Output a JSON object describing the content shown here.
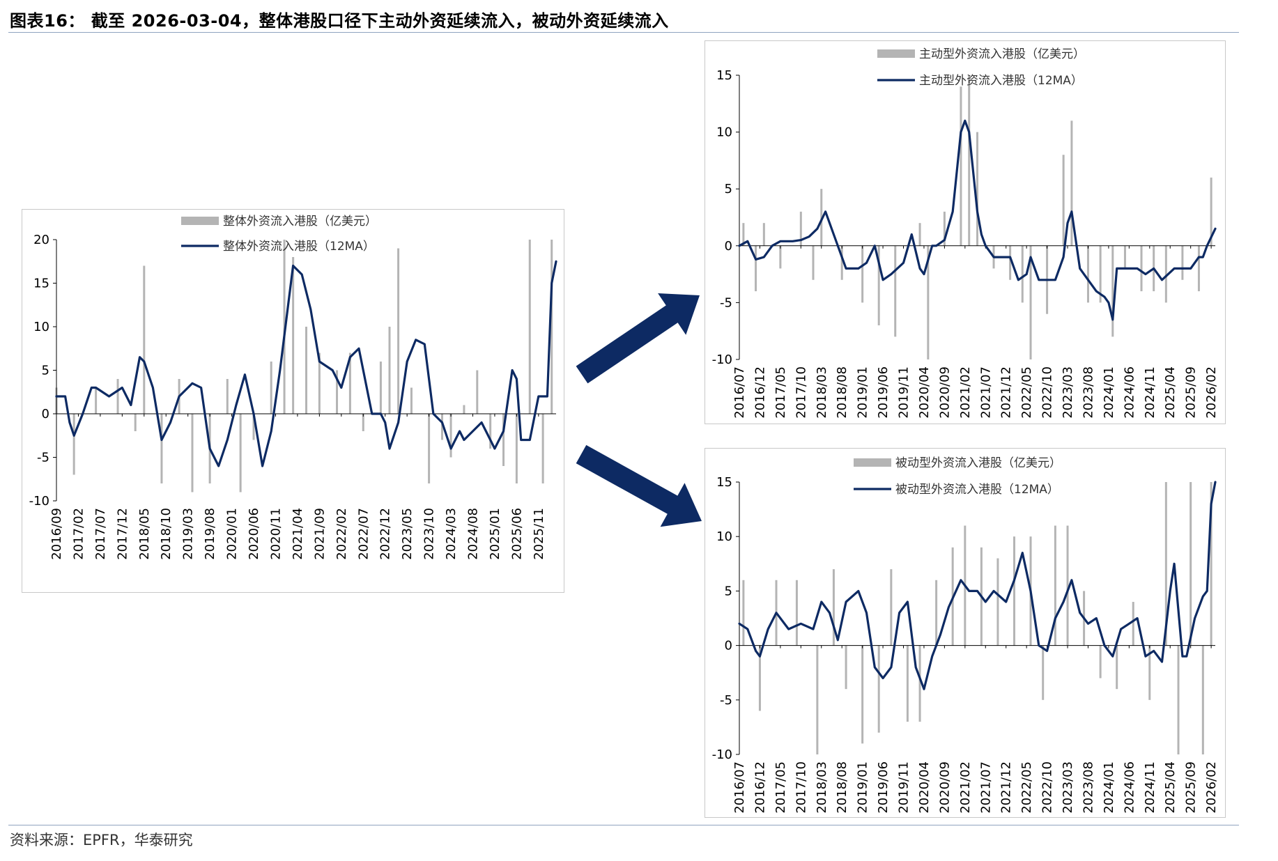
{
  "page": {
    "title": "图表16：  截至 2026-03-04，整体港股口径下主动外资延续流入，被动外资延续流入",
    "source": "资料来源：EPFR，华泰研究",
    "colors": {
      "bar": "#b4b4b4",
      "line": "#0d2a63",
      "arrow": "#0d2a63",
      "axis": "#000000"
    }
  },
  "chart_data": [
    {
      "id": "overall",
      "type": "bar",
      "title": "",
      "xlabel": "",
      "ylabel": "",
      "ylim": [
        -10,
        20
      ],
      "yticks": [
        -10,
        -5,
        0,
        5,
        10,
        15,
        20
      ],
      "x_start": "2016-09",
      "x_end": "2026-03",
      "x_tick_labels": [
        "2016/09",
        "2017/02",
        "2017/07",
        "2017/12",
        "2018/05",
        "2018/10",
        "2019/03",
        "2019/08",
        "2020/01",
        "2020/06",
        "2020/11",
        "2021/04",
        "2021/09",
        "2022/02",
        "2022/07",
        "2022/12",
        "2023/05",
        "2023/10",
        "2024/03",
        "2024/08",
        "2025/01",
        "2025/06",
        "2025/11"
      ],
      "legend_position": "top-center",
      "series": [
        {
          "name": "整体外资流入港股（亿美元）",
          "kind": "bar",
          "x": [
            "2016-09",
            "2017-01",
            "2017-06",
            "2017-11",
            "2018-03",
            "2018-05",
            "2018-09",
            "2019-01",
            "2019-04",
            "2019-08",
            "2019-12",
            "2020-03",
            "2020-06",
            "2020-10",
            "2021-01",
            "2021-03",
            "2021-06",
            "2021-09",
            "2022-01",
            "2022-04",
            "2022-07",
            "2022-11",
            "2023-01",
            "2023-03",
            "2023-06",
            "2023-10",
            "2024-01",
            "2024-03",
            "2024-06",
            "2024-09",
            "2024-12",
            "2025-03",
            "2025-06",
            "2025-09",
            "2025-12",
            "2026-02"
          ],
          "values": [
            3,
            -7,
            3,
            4,
            -2,
            17,
            -8,
            4,
            -9,
            -8,
            4,
            -9,
            -3,
            6,
            20,
            18,
            10,
            7,
            5,
            7,
            -2,
            6,
            10,
            19,
            3,
            -8,
            -3,
            -5,
            1,
            5,
            -4,
            -6,
            -8,
            20,
            -8,
            20
          ]
        },
        {
          "name": "整体外资流入港股（12MA）",
          "kind": "line",
          "x": [
            "2016-09",
            "2016-11",
            "2016-12",
            "2017-01",
            "2017-03",
            "2017-05",
            "2017-06",
            "2017-09",
            "2017-12",
            "2018-02",
            "2018-04",
            "2018-05",
            "2018-07",
            "2018-09",
            "2018-11",
            "2019-01",
            "2019-04",
            "2019-06",
            "2019-08",
            "2019-10",
            "2019-12",
            "2020-02",
            "2020-04",
            "2020-06",
            "2020-08",
            "2020-10",
            "2020-12",
            "2021-02",
            "2021-03",
            "2021-05",
            "2021-07",
            "2021-09",
            "2021-12",
            "2022-02",
            "2022-04",
            "2022-06",
            "2022-09",
            "2022-11",
            "2022-12",
            "2023-01",
            "2023-03",
            "2023-05",
            "2023-07",
            "2023-09",
            "2023-11",
            "2024-01",
            "2024-03",
            "2024-05",
            "2024-06",
            "2024-08",
            "2024-10",
            "2024-12",
            "2025-01",
            "2025-03",
            "2025-05",
            "2025-06",
            "2025-07",
            "2025-09",
            "2025-11",
            "2026-01",
            "2026-02",
            "2026-03"
          ],
          "values": [
            2,
            2,
            -1,
            -2.5,
            0,
            3,
            3,
            2,
            3,
            1,
            6.5,
            6,
            3,
            -3,
            -1,
            2,
            3.5,
            3,
            -4,
            -6,
            -3,
            1,
            4.5,
            0,
            -6,
            -2,
            5,
            13,
            17,
            16,
            12,
            6,
            5,
            3,
            6.5,
            7.5,
            0,
            0,
            -1,
            -4,
            -1,
            6,
            8.5,
            8,
            0,
            -1,
            -4,
            -2,
            -3,
            -2,
            -1,
            -3,
            -4,
            -2,
            5,
            4,
            -3,
            -3,
            2,
            2,
            15,
            17.5
          ]
        }
      ]
    },
    {
      "id": "active",
      "type": "bar",
      "title": "",
      "xlabel": "",
      "ylabel": "",
      "ylim": [
        -10,
        15
      ],
      "yticks": [
        -10,
        -5,
        0,
        5,
        10,
        15
      ],
      "x_start": "2016-07",
      "x_end": "2026-03",
      "x_tick_labels": [
        "2016/07",
        "2016/12",
        "2017/05",
        "2017/10",
        "2018/03",
        "2018/08",
        "2019/01",
        "2019/06",
        "2019/11",
        "2020/04",
        "2020/09",
        "2021/02",
        "2021/07",
        "2021/12",
        "2022/05",
        "2022/10",
        "2023/03",
        "2023/08",
        "2024/01",
        "2024/06",
        "2024/11",
        "2025/04",
        "2025/09",
        "2026/02"
      ],
      "legend_position": "top-center",
      "series": [
        {
          "name": "主动型外资流入港股（亿美元）",
          "kind": "bar",
          "x": [
            "2016-08",
            "2016-11",
            "2017-01",
            "2017-05",
            "2017-10",
            "2018-01",
            "2018-03",
            "2018-08",
            "2019-01",
            "2019-05",
            "2019-09",
            "2020-03",
            "2020-05",
            "2020-09",
            "2021-01",
            "2021-03",
            "2021-05",
            "2021-09",
            "2022-01",
            "2022-04",
            "2022-06",
            "2022-10",
            "2023-02",
            "2023-04",
            "2023-08",
            "2023-11",
            "2024-02",
            "2024-05",
            "2024-09",
            "2024-12",
            "2025-03",
            "2025-07",
            "2025-11",
            "2026-02"
          ],
          "values": [
            2,
            -4,
            2,
            -2,
            3,
            -3,
            5,
            -3,
            -5,
            -7,
            -8,
            2,
            -10,
            3,
            14,
            15,
            10,
            -2,
            -3,
            -5,
            -10,
            -6,
            8,
            11,
            -5,
            -5,
            -8,
            -2,
            -4,
            -4,
            -5,
            -3,
            -4,
            6
          ]
        },
        {
          "name": "主动型外资流入港股（12MA）",
          "kind": "line",
          "x": [
            "2016-07",
            "2016-09",
            "2016-11",
            "2017-01",
            "2017-03",
            "2017-05",
            "2017-08",
            "2017-10",
            "2017-12",
            "2018-02",
            "2018-04",
            "2018-06",
            "2018-09",
            "2018-12",
            "2019-02",
            "2019-04",
            "2019-06",
            "2019-08",
            "2019-11",
            "2020-01",
            "2020-03",
            "2020-04",
            "2020-06",
            "2020-07",
            "2020-09",
            "2020-11",
            "2021-01",
            "2021-02",
            "2021-03",
            "2021-05",
            "2021-06",
            "2021-07",
            "2021-09",
            "2021-11",
            "2022-01",
            "2022-03",
            "2022-05",
            "2022-06",
            "2022-08",
            "2022-10",
            "2022-12",
            "2023-02",
            "2023-03",
            "2023-04",
            "2023-06",
            "2023-08",
            "2023-10",
            "2023-12",
            "2024-01",
            "2024-02",
            "2024-03",
            "2024-05",
            "2024-08",
            "2024-10",
            "2024-12",
            "2025-02",
            "2025-05",
            "2025-07",
            "2025-09",
            "2025-11",
            "2025-12",
            "2026-01",
            "2026-03"
          ],
          "values": [
            0,
            0.4,
            -1.2,
            -1,
            0,
            0.4,
            0.4,
            0.5,
            0.8,
            1.5,
            3,
            1,
            -2,
            -2,
            -1.5,
            0,
            -3,
            -2.5,
            -1.5,
            1,
            -2,
            -2.5,
            0,
            0,
            0.5,
            3,
            10,
            11,
            10,
            3,
            1,
            0,
            -1,
            -1,
            -1,
            -3,
            -2.5,
            -1,
            -3,
            -3,
            -3,
            -1,
            2,
            3,
            -2,
            -3,
            -4,
            -4.5,
            -5,
            -6.5,
            -2,
            -2,
            -2,
            -2.5,
            -2,
            -3,
            -2,
            -2,
            -2,
            -1,
            -1,
            0,
            1.5
          ]
        }
      ]
    },
    {
      "id": "passive",
      "type": "bar",
      "title": "",
      "xlabel": "",
      "ylabel": "",
      "ylim": [
        -10,
        15
      ],
      "yticks": [
        -10,
        -5,
        0,
        5,
        10,
        15
      ],
      "x_start": "2016-07",
      "x_end": "2026-03",
      "x_tick_labels": [
        "2016/07",
        "2016/12",
        "2017/05",
        "2017/10",
        "2018/03",
        "2018/08",
        "2019/01",
        "2019/06",
        "2019/11",
        "2020/04",
        "2020/09",
        "2021/02",
        "2021/07",
        "2021/12",
        "2022/05",
        "2022/10",
        "2023/03",
        "2023/08",
        "2024/01",
        "2024/06",
        "2024/11",
        "2025/04",
        "2025/09",
        "2026/02"
      ],
      "legend_position": "top-center",
      "series": [
        {
          "name": "被动型外资流入港股（亿美元）",
          "kind": "bar",
          "x": [
            "2016-08",
            "2016-12",
            "2017-04",
            "2017-09",
            "2018-02",
            "2018-06",
            "2018-09",
            "2019-01",
            "2019-05",
            "2019-08",
            "2019-12",
            "2020-03",
            "2020-07",
            "2020-11",
            "2021-02",
            "2021-06",
            "2021-10",
            "2022-02",
            "2022-06",
            "2022-09",
            "2022-12",
            "2023-03",
            "2023-07",
            "2023-11",
            "2024-03",
            "2024-07",
            "2024-11",
            "2025-03",
            "2025-06",
            "2025-09",
            "2025-12",
            "2026-02"
          ],
          "values": [
            6,
            -6,
            6,
            6,
            -10,
            7,
            -4,
            -9,
            -8,
            7,
            -7,
            -7,
            6,
            9,
            11,
            9,
            8,
            10,
            10,
            -5,
            11,
            11,
            5,
            -3,
            -4,
            4,
            -5,
            15,
            -10,
            15,
            -10,
            15
          ]
        },
        {
          "name": "被动型外资流入港股（12MA）",
          "kind": "line",
          "x": [
            "2016-07",
            "2016-09",
            "2016-11",
            "2016-12",
            "2017-02",
            "2017-04",
            "2017-07",
            "2017-10",
            "2018-01",
            "2018-03",
            "2018-05",
            "2018-07",
            "2018-09",
            "2018-12",
            "2019-02",
            "2019-04",
            "2019-06",
            "2019-08",
            "2019-10",
            "2019-12",
            "2020-02",
            "2020-04",
            "2020-06",
            "2020-08",
            "2020-10",
            "2021-01",
            "2021-03",
            "2021-05",
            "2021-07",
            "2021-09",
            "2021-12",
            "2022-02",
            "2022-04",
            "2022-06",
            "2022-08",
            "2022-10",
            "2022-12",
            "2023-02",
            "2023-04",
            "2023-06",
            "2023-08",
            "2023-10",
            "2023-12",
            "2024-02",
            "2024-04",
            "2024-06",
            "2024-08",
            "2024-10",
            "2024-12",
            "2025-02",
            "2025-04",
            "2025-05",
            "2025-07",
            "2025-08",
            "2025-10",
            "2025-12",
            "2026-01",
            "2026-02",
            "2026-03"
          ],
          "values": [
            2,
            1.5,
            -0.5,
            -1,
            1.5,
            3,
            1.5,
            2,
            1.5,
            4,
            3,
            0.5,
            4,
            5,
            3,
            -2,
            -3,
            -2,
            3,
            4,
            -2,
            -4,
            -1,
            1,
            3.5,
            6,
            5,
            5,
            4,
            5,
            4,
            6,
            8.5,
            5,
            0,
            -0.5,
            2.5,
            4,
            6,
            3,
            2,
            2.5,
            0,
            -1,
            1.5,
            2,
            2.5,
            -1,
            -0.5,
            -1.5,
            5,
            7.5,
            -1,
            -1,
            2.5,
            4.5,
            5,
            13,
            15
          ]
        }
      ]
    }
  ]
}
